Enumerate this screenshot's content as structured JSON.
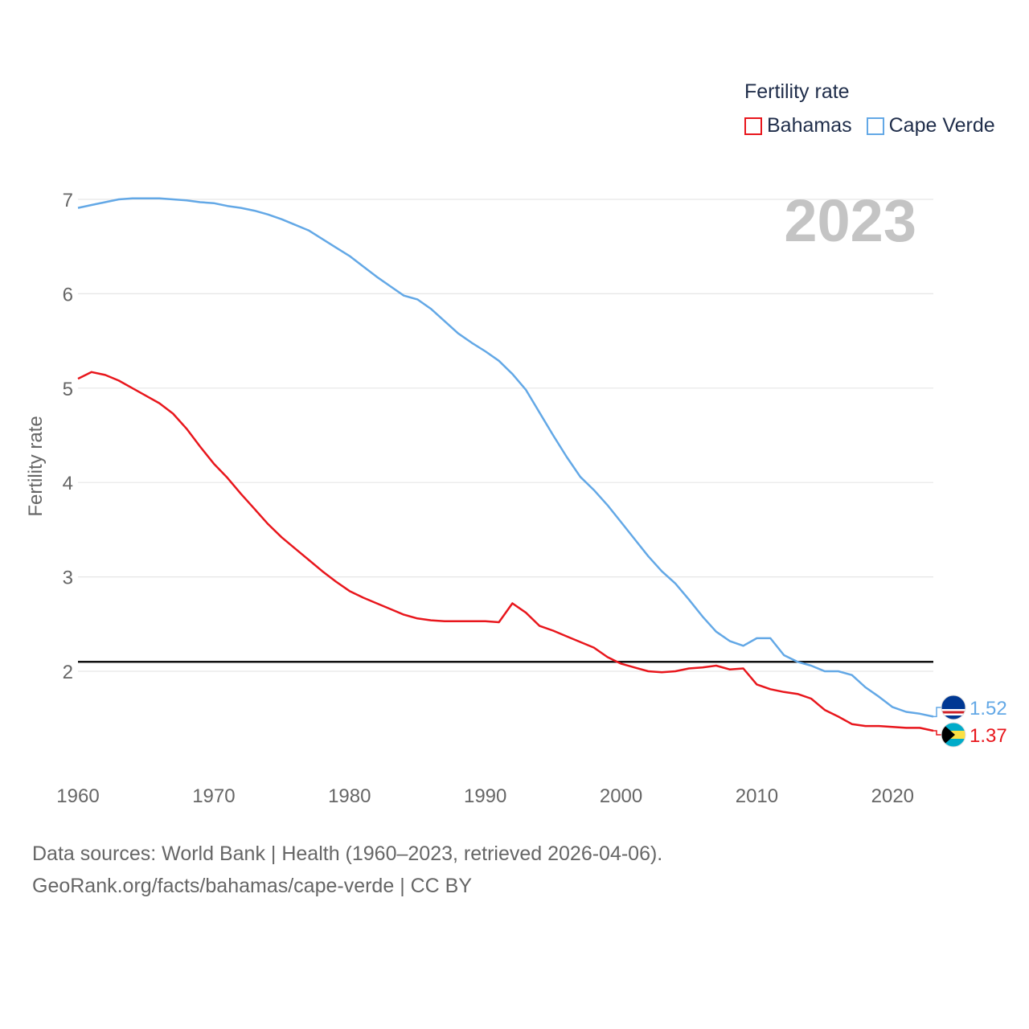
{
  "legend": {
    "title": "Fertility rate",
    "items": [
      {
        "name": "Bahamas",
        "color": "#e8161c"
      },
      {
        "name": "Cape Verde",
        "color": "#63a8e6"
      }
    ]
  },
  "footer": {
    "line1": "Data sources: World Bank | Health (1960–2023, retrieved 2026-04-06).",
    "line2": "GeoRank.org/facts/bahamas/cape-verde | CC BY"
  },
  "chart_data": {
    "type": "line",
    "title": "2023",
    "xlabel": "",
    "ylabel": "Fertility rate",
    "xlim": [
      1960,
      2023
    ],
    "ylim": [
      1.0,
      7.2
    ],
    "xticks": [
      1960,
      1970,
      1980,
      1990,
      2000,
      2010,
      2020
    ],
    "yticks": [
      2,
      3,
      4,
      5,
      6,
      7
    ],
    "reference_line": 2.1,
    "x": [
      1960,
      1961,
      1962,
      1963,
      1964,
      1965,
      1966,
      1967,
      1968,
      1969,
      1970,
      1971,
      1972,
      1973,
      1974,
      1975,
      1976,
      1977,
      1978,
      1979,
      1980,
      1981,
      1982,
      1983,
      1984,
      1985,
      1986,
      1987,
      1988,
      1989,
      1990,
      1991,
      1992,
      1993,
      1994,
      1995,
      1996,
      1997,
      1998,
      1999,
      2000,
      2001,
      2002,
      2003,
      2004,
      2005,
      2006,
      2007,
      2008,
      2009,
      2010,
      2011,
      2012,
      2013,
      2014,
      2015,
      2016,
      2017,
      2018,
      2019,
      2020,
      2021,
      2022,
      2023
    ],
    "series": [
      {
        "name": "Bahamas",
        "color": "#e8161c",
        "end_label": "1.37",
        "values": [
          5.1,
          5.17,
          5.14,
          5.08,
          5.0,
          4.92,
          4.84,
          4.73,
          4.57,
          4.38,
          4.2,
          4.05,
          3.88,
          3.72,
          3.56,
          3.42,
          3.3,
          3.18,
          3.06,
          2.95,
          2.85,
          2.78,
          2.72,
          2.66,
          2.6,
          2.56,
          2.54,
          2.53,
          2.53,
          2.53,
          2.53,
          2.52,
          2.72,
          2.62,
          2.48,
          2.43,
          2.37,
          2.31,
          2.25,
          2.15,
          2.08,
          2.04,
          2.0,
          1.99,
          2.0,
          2.03,
          2.04,
          2.06,
          2.02,
          2.03,
          1.86,
          1.81,
          1.78,
          1.76,
          1.71,
          1.59,
          1.52,
          1.44,
          1.42,
          1.42,
          1.41,
          1.4,
          1.4,
          1.37
        ]
      },
      {
        "name": "Cape Verde",
        "color": "#63a8e6",
        "end_label": "1.52",
        "values": [
          6.91,
          6.94,
          6.97,
          7.0,
          7.01,
          7.01,
          7.01,
          7.0,
          6.99,
          6.97,
          6.96,
          6.93,
          6.91,
          6.88,
          6.84,
          6.79,
          6.73,
          6.67,
          6.58,
          6.49,
          6.4,
          6.29,
          6.18,
          6.08,
          5.98,
          5.94,
          5.84,
          5.71,
          5.58,
          5.48,
          5.39,
          5.29,
          5.15,
          4.98,
          4.74,
          4.5,
          4.27,
          4.06,
          3.92,
          3.76,
          3.58,
          3.4,
          3.22,
          3.06,
          2.93,
          2.76,
          2.58,
          2.42,
          2.32,
          2.27,
          2.35,
          2.35,
          2.17,
          2.1,
          2.06,
          2.0,
          2.0,
          1.96,
          1.83,
          1.73,
          1.62,
          1.57,
          1.55,
          1.52
        ]
      }
    ]
  }
}
